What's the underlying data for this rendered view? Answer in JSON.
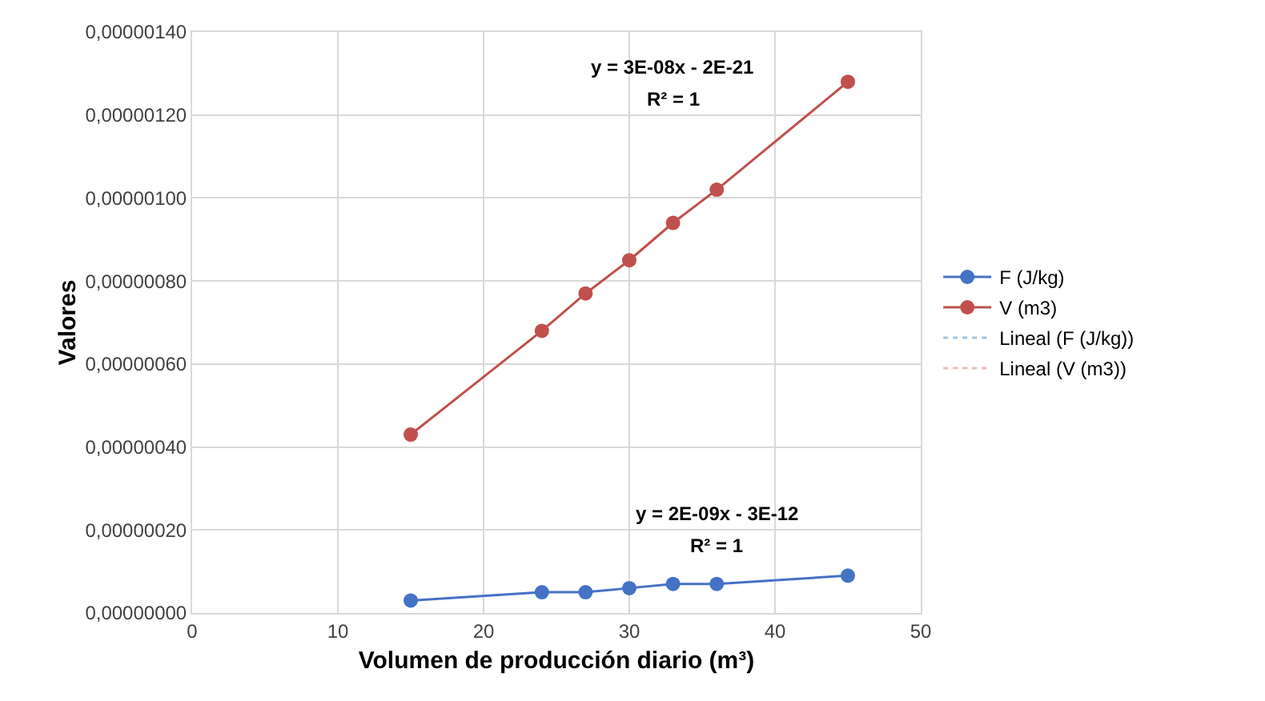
{
  "chart_data": {
    "type": "line",
    "xlabel": "Volumen de producción diario (m³)",
    "ylabel": "Valores",
    "xlim": [
      0,
      50
    ],
    "xticks": [
      0,
      10,
      20,
      30,
      40,
      50
    ],
    "ylim": [
      0,
      1.4e-06
    ],
    "yticks": [
      {
        "value": 0,
        "label": "0,00000000"
      },
      {
        "value": 2e-07,
        "label": "0,00000020"
      },
      {
        "value": 4e-07,
        "label": "0,00000040"
      },
      {
        "value": 6e-07,
        "label": "0,00000060"
      },
      {
        "value": 8e-07,
        "label": "0,00000080"
      },
      {
        "value": 1e-06,
        "label": "0,00000100"
      },
      {
        "value": 1.2e-06,
        "label": "0,00000120"
      },
      {
        "value": 1.4e-06,
        "label": "0,00000140"
      }
    ],
    "x": [
      15,
      24,
      27,
      30,
      33,
      36,
      45
    ],
    "series": [
      {
        "name": "F (J/kg)",
        "color": "#4472c4",
        "marker": "circle",
        "line_style": "solid",
        "values": [
          3e-08,
          5e-08,
          5e-08,
          6e-08,
          7e-08,
          7e-08,
          9e-08
        ]
      },
      {
        "name": "V (m3)",
        "color": "#c0504d",
        "marker": "circle",
        "line_style": "solid",
        "values": [
          4.3e-07,
          6.8e-07,
          7.7e-07,
          8.5e-07,
          9.4e-07,
          1.02e-06,
          1.28e-06
        ]
      },
      {
        "name": "Lineal (F (J/kg))",
        "color": "#9dc3e6",
        "marker": "none",
        "line_style": "dotted",
        "values": [
          null,
          null,
          null,
          null,
          null,
          null,
          null
        ]
      },
      {
        "name": "Lineal (V (m3))",
        "color": "#f4b6b4",
        "marker": "none",
        "line_style": "dotted",
        "values": [
          null,
          null,
          null,
          null,
          null,
          null,
          null
        ]
      }
    ],
    "annotations": [
      "y = 3E-08x - 2E-21",
      "R² = 1",
      "y = 2E-09x - 3E-12",
      "R² = 1"
    ],
    "grid": true,
    "legend": "right"
  }
}
